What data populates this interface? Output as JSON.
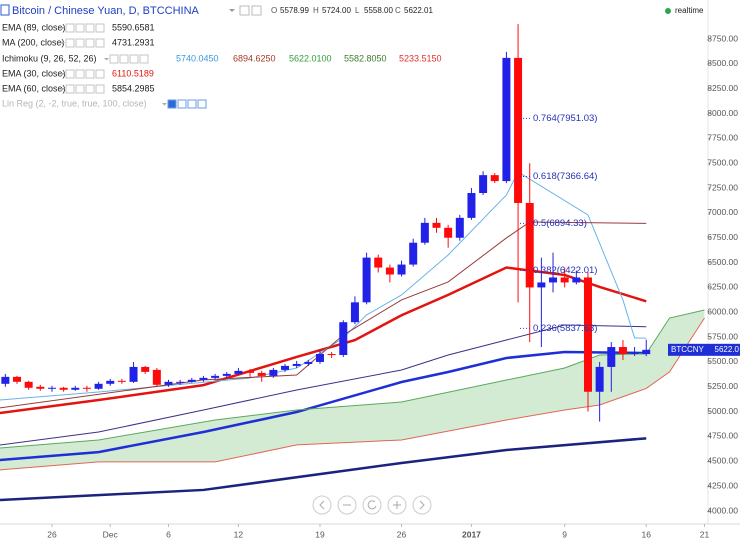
{
  "header": {
    "title": "Bitcoin / Chinese Yuan, D, BTCCHINA",
    "ohlc": [
      {
        "key": "O",
        "value": "5578.99"
      },
      {
        "key": "H",
        "value": "5724.00"
      },
      {
        "key": "L",
        "value": "5558.00"
      },
      {
        "key": "C",
        "value": "5622.01"
      }
    ],
    "status": "realtime"
  },
  "legend": [
    {
      "label": "EMA (89, close)",
      "values": [
        "5590.6581"
      ],
      "colors": [
        "#222222"
      ]
    },
    {
      "label": "MA (200, close)",
      "values": [
        "4731.2931"
      ],
      "colors": [
        "#222222"
      ]
    },
    {
      "label": "Ichimoku (9, 26, 52, 26)",
      "values": [
        "5740.0450",
        "6894.6250",
        "5622.0100",
        "5582.8050",
        "5233.5150"
      ],
      "colors": [
        "#3b9ad9",
        "#a33a2a",
        "#2f9e3a",
        "#3f7d2a",
        "#e0302a"
      ]
    },
    {
      "label": "EMA (30, close)",
      "values": [
        "6110.5189"
      ],
      "colors": [
        "#e3140f"
      ]
    },
    {
      "label": "EMA (60, close)",
      "values": [
        "5854.2985"
      ],
      "colors": [
        "#222222"
      ]
    },
    {
      "label": "Lin Reg (2, -2, true, true, 100, close)"
    }
  ],
  "chart_data": {
    "type": "candlestick",
    "x": [
      -4,
      -3,
      -2,
      -1,
      0,
      1,
      2,
      3,
      4,
      5,
      6,
      7,
      8,
      9,
      10,
      11,
      12,
      13,
      14,
      15,
      16,
      17,
      18,
      19,
      20,
      21,
      22,
      23,
      24,
      25,
      26,
      27,
      28,
      29,
      30,
      31,
      32,
      33,
      34,
      35,
      36,
      37,
      38,
      39,
      40,
      41,
      42,
      43,
      44,
      45,
      46,
      47,
      48,
      49,
      50,
      51
    ],
    "open": [
      5280,
      5350,
      5300,
      5250,
      5230,
      5240,
      5220,
      5240,
      5230,
      5280,
      5310,
      5300,
      5450,
      5420,
      5270,
      5290,
      5300,
      5320,
      5340,
      5360,
      5380,
      5410,
      5390,
      5360,
      5420,
      5460,
      5480,
      5500,
      5580,
      5570,
      5900,
      6100,
      6550,
      6450,
      6380,
      6480,
      6700,
      6900,
      6850,
      6750,
      6950,
      7200,
      7380,
      7320,
      8560,
      7100,
      6250,
      6300,
      6350,
      6300,
      6350,
      5200,
      5450,
      5650,
      5580,
      5578.99
    ],
    "high": [
      5380,
      5360,
      5310,
      5270,
      5260,
      5250,
      5260,
      5260,
      5300,
      5330,
      5330,
      5500,
      5460,
      5440,
      5320,
      5320,
      5340,
      5360,
      5380,
      5400,
      5440,
      5430,
      5410,
      5440,
      5480,
      5510,
      5520,
      5620,
      5600,
      5920,
      6160,
      6600,
      6580,
      6480,
      6520,
      6740,
      6950,
      6950,
      6880,
      6980,
      7250,
      7420,
      7400,
      8620,
      8900,
      7500,
      6550,
      6600,
      6450,
      6420,
      6400,
      5500,
      5700,
      5720,
      5650,
      5724
    ],
    "low": [
      5250,
      5280,
      5220,
      5210,
      5200,
      5200,
      5210,
      5200,
      5220,
      5260,
      5280,
      5290,
      5380,
      5250,
      5250,
      5270,
      5290,
      5300,
      5320,
      5340,
      5370,
      5350,
      5300,
      5340,
      5400,
      5440,
      5460,
      5480,
      5540,
      5550,
      5880,
      6080,
      6400,
      6300,
      6360,
      6460,
      6680,
      6800,
      6650,
      6720,
      6930,
      7180,
      7300,
      7300,
      6100,
      5700,
      5650,
      6200,
      6250,
      6280,
      5000,
      4900,
      5200,
      5520,
      5560,
      5558
    ],
    "close": [
      5350,
      5300,
      5240,
      5230,
      5240,
      5220,
      5240,
      5230,
      5280,
      5310,
      5300,
      5450,
      5400,
      5270,
      5300,
      5300,
      5320,
      5340,
      5360,
      5380,
      5410,
      5390,
      5360,
      5420,
      5460,
      5480,
      5500,
      5580,
      5570,
      5900,
      6100,
      6550,
      6450,
      6380,
      6480,
      6700,
      6900,
      6850,
      6750,
      6950,
      7200,
      7380,
      7320,
      8560,
      7100,
      6250,
      6300,
      6350,
      6300,
      6350,
      5200,
      5450,
      5650,
      5580,
      5590,
      5622.01
    ],
    "up_color": "#2121e8",
    "down_color": "#ff0a0a",
    "series": [
      {
        "color": "#1f2fd6",
        "line_width": 2.5,
        "x": [
          -4.5,
          4,
          13,
          21,
          30,
          34,
          39,
          44,
          51
        ],
        "values": [
          4513,
          4593,
          4795,
          4996,
          5298,
          5399,
          5540,
          5600,
          5590.6581
        ]
      },
      {
        "color": "#3d2f8a",
        "line_width": 1,
        "x": [
          -4.5,
          4,
          13,
          21,
          30,
          34,
          39,
          44,
          51
        ],
        "values": [
          4664,
          4795,
          5016,
          5218,
          5419,
          5570,
          5721,
          5872,
          5854.2985
        ]
      },
      {
        "color": "#1b237f",
        "line_width": 2.5,
        "x": [
          -4.5,
          13,
          30,
          39,
          51
        ],
        "values": [
          4111,
          4212,
          4483,
          4614,
          4731.2931
        ]
      },
      {
        "color": "#e3140f",
        "line_width": 2.5,
        "x": [
          -4.5,
          4,
          13,
          21,
          26,
          30,
          34,
          39,
          44,
          47,
          51
        ],
        "values": [
          4986,
          5117,
          5267,
          5550,
          5720,
          5970,
          6175,
          6450,
          6375,
          6255,
          6110.5189
        ]
      },
      {
        "color": "#6ab4e6",
        "line_width": 1,
        "x": [
          -4.5,
          4,
          17,
          21,
          25,
          27,
          30,
          34,
          39,
          40,
          46,
          49,
          50,
          51
        ],
        "values": [
          5117,
          5198,
          5339,
          5439,
          5741,
          5973,
          6174,
          6576,
          7180,
          7412,
          6979,
          6124,
          5741,
          5740.045
        ]
      },
      {
        "color": "#9a3a3a",
        "line_width": 1,
        "x": [
          -4.5,
          13,
          21,
          25,
          30,
          34,
          39,
          41,
          51
        ],
        "values": [
          5037,
          5319,
          5369,
          5771,
          6124,
          6305,
          6748,
          6909,
          6894.625
        ]
      },
      {
        "color": "#5aa95c",
        "line_width": 1,
        "x": [
          -4.5,
          4,
          14,
          21,
          30,
          39,
          44,
          47,
          51,
          53,
          56
        ],
        "values": [
          4634,
          4715,
          4916,
          5016,
          5097,
          5318,
          5439,
          5570,
          5582.805,
          5942,
          6023
        ]
      },
      {
        "color": "#e0665a",
        "line_width": 1,
        "x": [
          -4.5,
          4,
          14,
          21,
          30,
          39,
          44,
          47,
          51,
          53,
          56
        ],
        "values": [
          4413,
          4494,
          4494,
          4665,
          4715,
          4916,
          5016,
          5067,
          5233.515,
          5400,
          5942
        ]
      }
    ],
    "cloud_color": "#cde8cb",
    "annotations": [
      {
        "text": "0.764(7951.03)",
        "value": 7951.03
      },
      {
        "text": "0.618(7366.64)",
        "value": 7366.64
      },
      {
        "text": "0.5(6894.33)",
        "value": 6894.33
      },
      {
        "text": "0.382(6422.01)",
        "value": 6422.01
      },
      {
        "text": "0.236(5837.63)",
        "value": 5837.63
      }
    ],
    "price_tag": {
      "symbol": "BTCCNY",
      "label": "5622.0"
    },
    "xlim": [
      -4.46,
      56.3
    ],
    "xticks": [
      {
        "value": 0,
        "label": "26"
      },
      {
        "value": 5,
        "label": "Dec"
      },
      {
        "value": 10,
        "label": "6"
      },
      {
        "value": 16,
        "label": "12"
      },
      {
        "value": 23,
        "label": "19"
      },
      {
        "value": 30,
        "label": "26"
      },
      {
        "value": 36,
        "label": "2017"
      },
      {
        "value": 44,
        "label": "9"
      },
      {
        "value": 51,
        "label": "16"
      },
      {
        "value": 56,
        "label": "21"
      }
    ],
    "ylim": [
      3869.2,
      9142.5
    ],
    "yticks": [
      {
        "value": 4000,
        "label": "4000.00"
      },
      {
        "value": 4250,
        "label": "4250.00"
      },
      {
        "value": 4500,
        "label": "4500.00"
      },
      {
        "value": 4750,
        "label": "4750.00"
      },
      {
        "value": 5000,
        "label": "5000.00"
      },
      {
        "value": 5250,
        "label": "5250.00"
      },
      {
        "value": 5500,
        "label": "5500.00"
      },
      {
        "value": 5750,
        "label": "5750.00"
      },
      {
        "value": 6000,
        "label": "6000.00"
      },
      {
        "value": 6250,
        "label": "6250.00"
      },
      {
        "value": 6500,
        "label": "6500.00"
      },
      {
        "value": 6750,
        "label": "6750.00"
      },
      {
        "value": 7000,
        "label": "7000.00"
      },
      {
        "value": 7250,
        "label": "7250.00"
      },
      {
        "value": 7500,
        "label": "7500.00"
      },
      {
        "value": 7750,
        "label": "7750.00"
      },
      {
        "value": 8000,
        "label": "8000.00"
      },
      {
        "value": 8250,
        "label": "8250.00"
      },
      {
        "value": 8500,
        "label": "8500.00"
      },
      {
        "value": 8750,
        "label": "8750.00"
      }
    ],
    "grid": false
  }
}
